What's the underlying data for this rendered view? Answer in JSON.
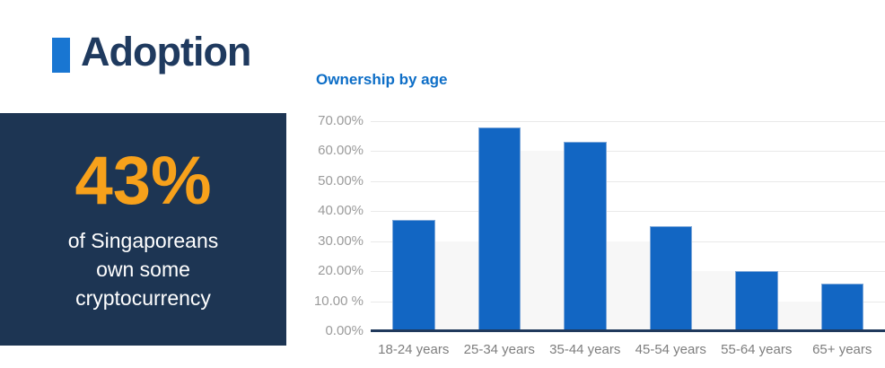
{
  "header": {
    "title": "Adoption"
  },
  "stat": {
    "value": "43%",
    "lines": [
      "of Singaporeans",
      "own some",
      "cryptocurrency"
    ]
  },
  "chart": {
    "title": "Ownership by age"
  },
  "chart_data": {
    "type": "bar",
    "title": "Ownership by age",
    "categories": [
      "18-24 years",
      "25-34 years",
      "35-44 years",
      "45-54 years",
      "55-64 years",
      "65+ years"
    ],
    "values": [
      37,
      68,
      63,
      35,
      20,
      16
    ],
    "value_unit": "percent",
    "xlabel": "",
    "ylabel": "",
    "ylim": [
      0,
      70
    ],
    "ytick_step": 10,
    "ytick_labels_top_to_bottom": [
      "70.00%",
      "60.00%",
      "50.00%",
      "40.00%",
      "30.00%",
      "20.00%",
      "10.00 %",
      "0.00%"
    ],
    "grid": true,
    "legend": false,
    "gap_shade_heights": [
      30,
      60,
      30,
      20,
      10
    ]
  },
  "colors": {
    "navy": "#1d3553",
    "navy_text": "#1f3a5f",
    "orange": "#f7a11b",
    "accent_blue": "#1976d2",
    "chart_title_blue": "#0d6ec7",
    "bar_blue": "#1266c3",
    "bar_edge_blue": "#7fa8d9",
    "gridline_gray": "#e9e9e9",
    "gap_shade_gray": "#f7f7f7",
    "ytick_gray": "#9b9b9b",
    "xtick_gray": "#7e7e7e",
    "axis_navy": "#20395c",
    "white": "#ffffff"
  }
}
